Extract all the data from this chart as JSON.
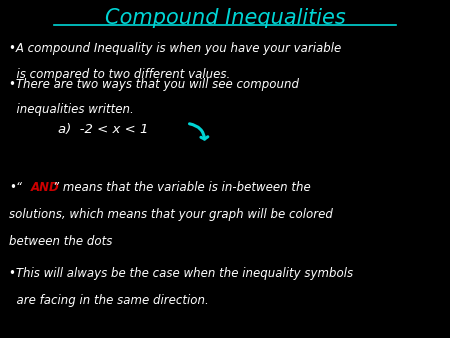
{
  "background_color": "#000000",
  "title": "Compound Inequalities",
  "title_color": "#00d5d5",
  "title_fontsize": 15,
  "bullet_color": "#ffffff",
  "bullet_fontsize": 8.5,
  "example_fontsize": 9.5,
  "and_color": "#cc0000",
  "cyan_color": "#00d5d5",
  "figsize": [
    4.5,
    3.38
  ],
  "dpi": 100,
  "line1a": "•A compound Inequality is when you have your variable",
  "line1b": "  is compared to two different values.",
  "line2a": "•There are two ways that you will see compound",
  "line2b": "  inequalities written.",
  "line3": "a)  -2 < x < 1",
  "line4a_pre": "•“",
  "line4a_and": "AND",
  "line4a_post": "” means that the variable is in-between the",
  "line4b": "solutions, which means that your graph will be colored",
  "line4c": "between the dots",
  "line5a": "•This will always be the case when the inequality symbols",
  "line5b": "  are facing in the same direction."
}
